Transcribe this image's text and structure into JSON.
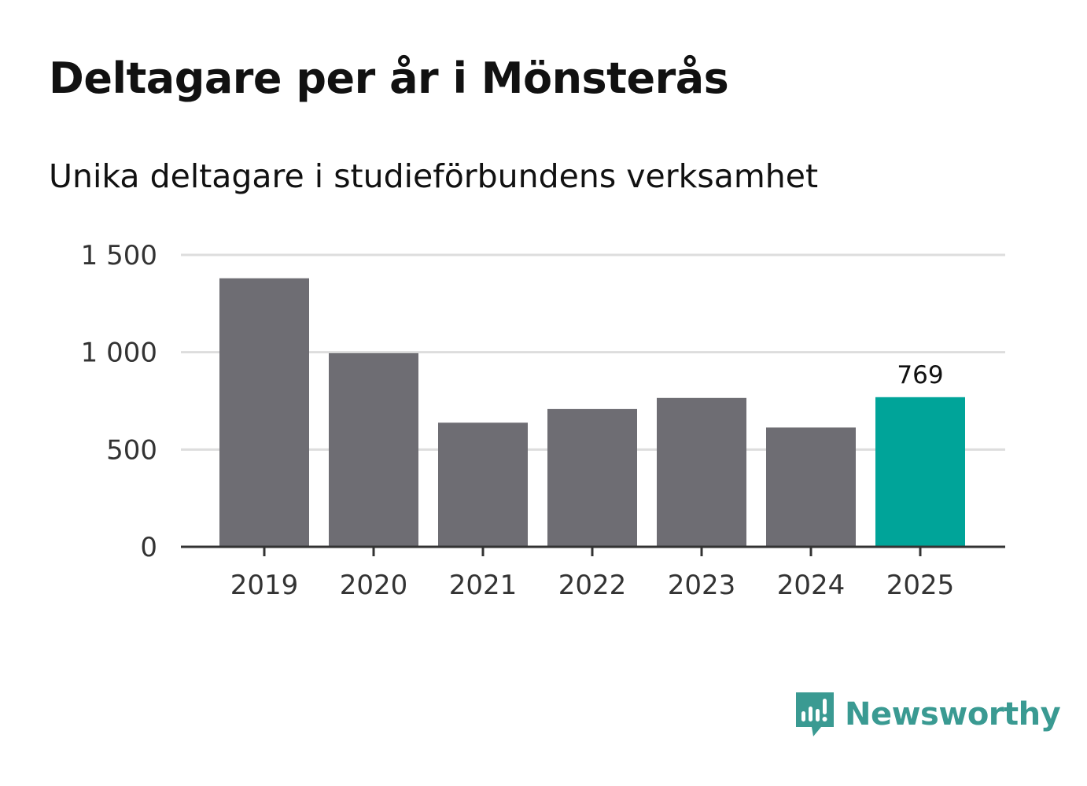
{
  "header": {
    "title": "Deltagare per år i Mönsterås",
    "subtitle": "Unika deltagare i studieförbundens verksamhet"
  },
  "brand": {
    "name": "Newsworthy",
    "icon": "newsworthy-logo-icon",
    "color": "#3a9a92"
  },
  "colors": {
    "bar": "#6e6d73",
    "highlight": "#00a499",
    "grid": "#dddddd",
    "axis": "#333333",
    "tick_text": "#333333"
  },
  "chart_data": {
    "type": "bar",
    "title": "Deltagare per år i Mönsterås",
    "subtitle": "Unika deltagare i studieförbundens verksamhet",
    "xlabel": "",
    "ylabel": "",
    "categories": [
      "2019",
      "2020",
      "2021",
      "2022",
      "2023",
      "2024",
      "2025"
    ],
    "values": [
      1380,
      995,
      638,
      708,
      765,
      613,
      769
    ],
    "ylim": [
      0,
      1500
    ],
    "yticks": [
      0,
      500,
      1000,
      1500
    ],
    "ytick_labels": [
      "0",
      "500",
      "1 000",
      "1 500"
    ],
    "grid": true,
    "highlight_index": 6,
    "data_labels": [
      {
        "index": 6,
        "text": "769"
      }
    ]
  }
}
